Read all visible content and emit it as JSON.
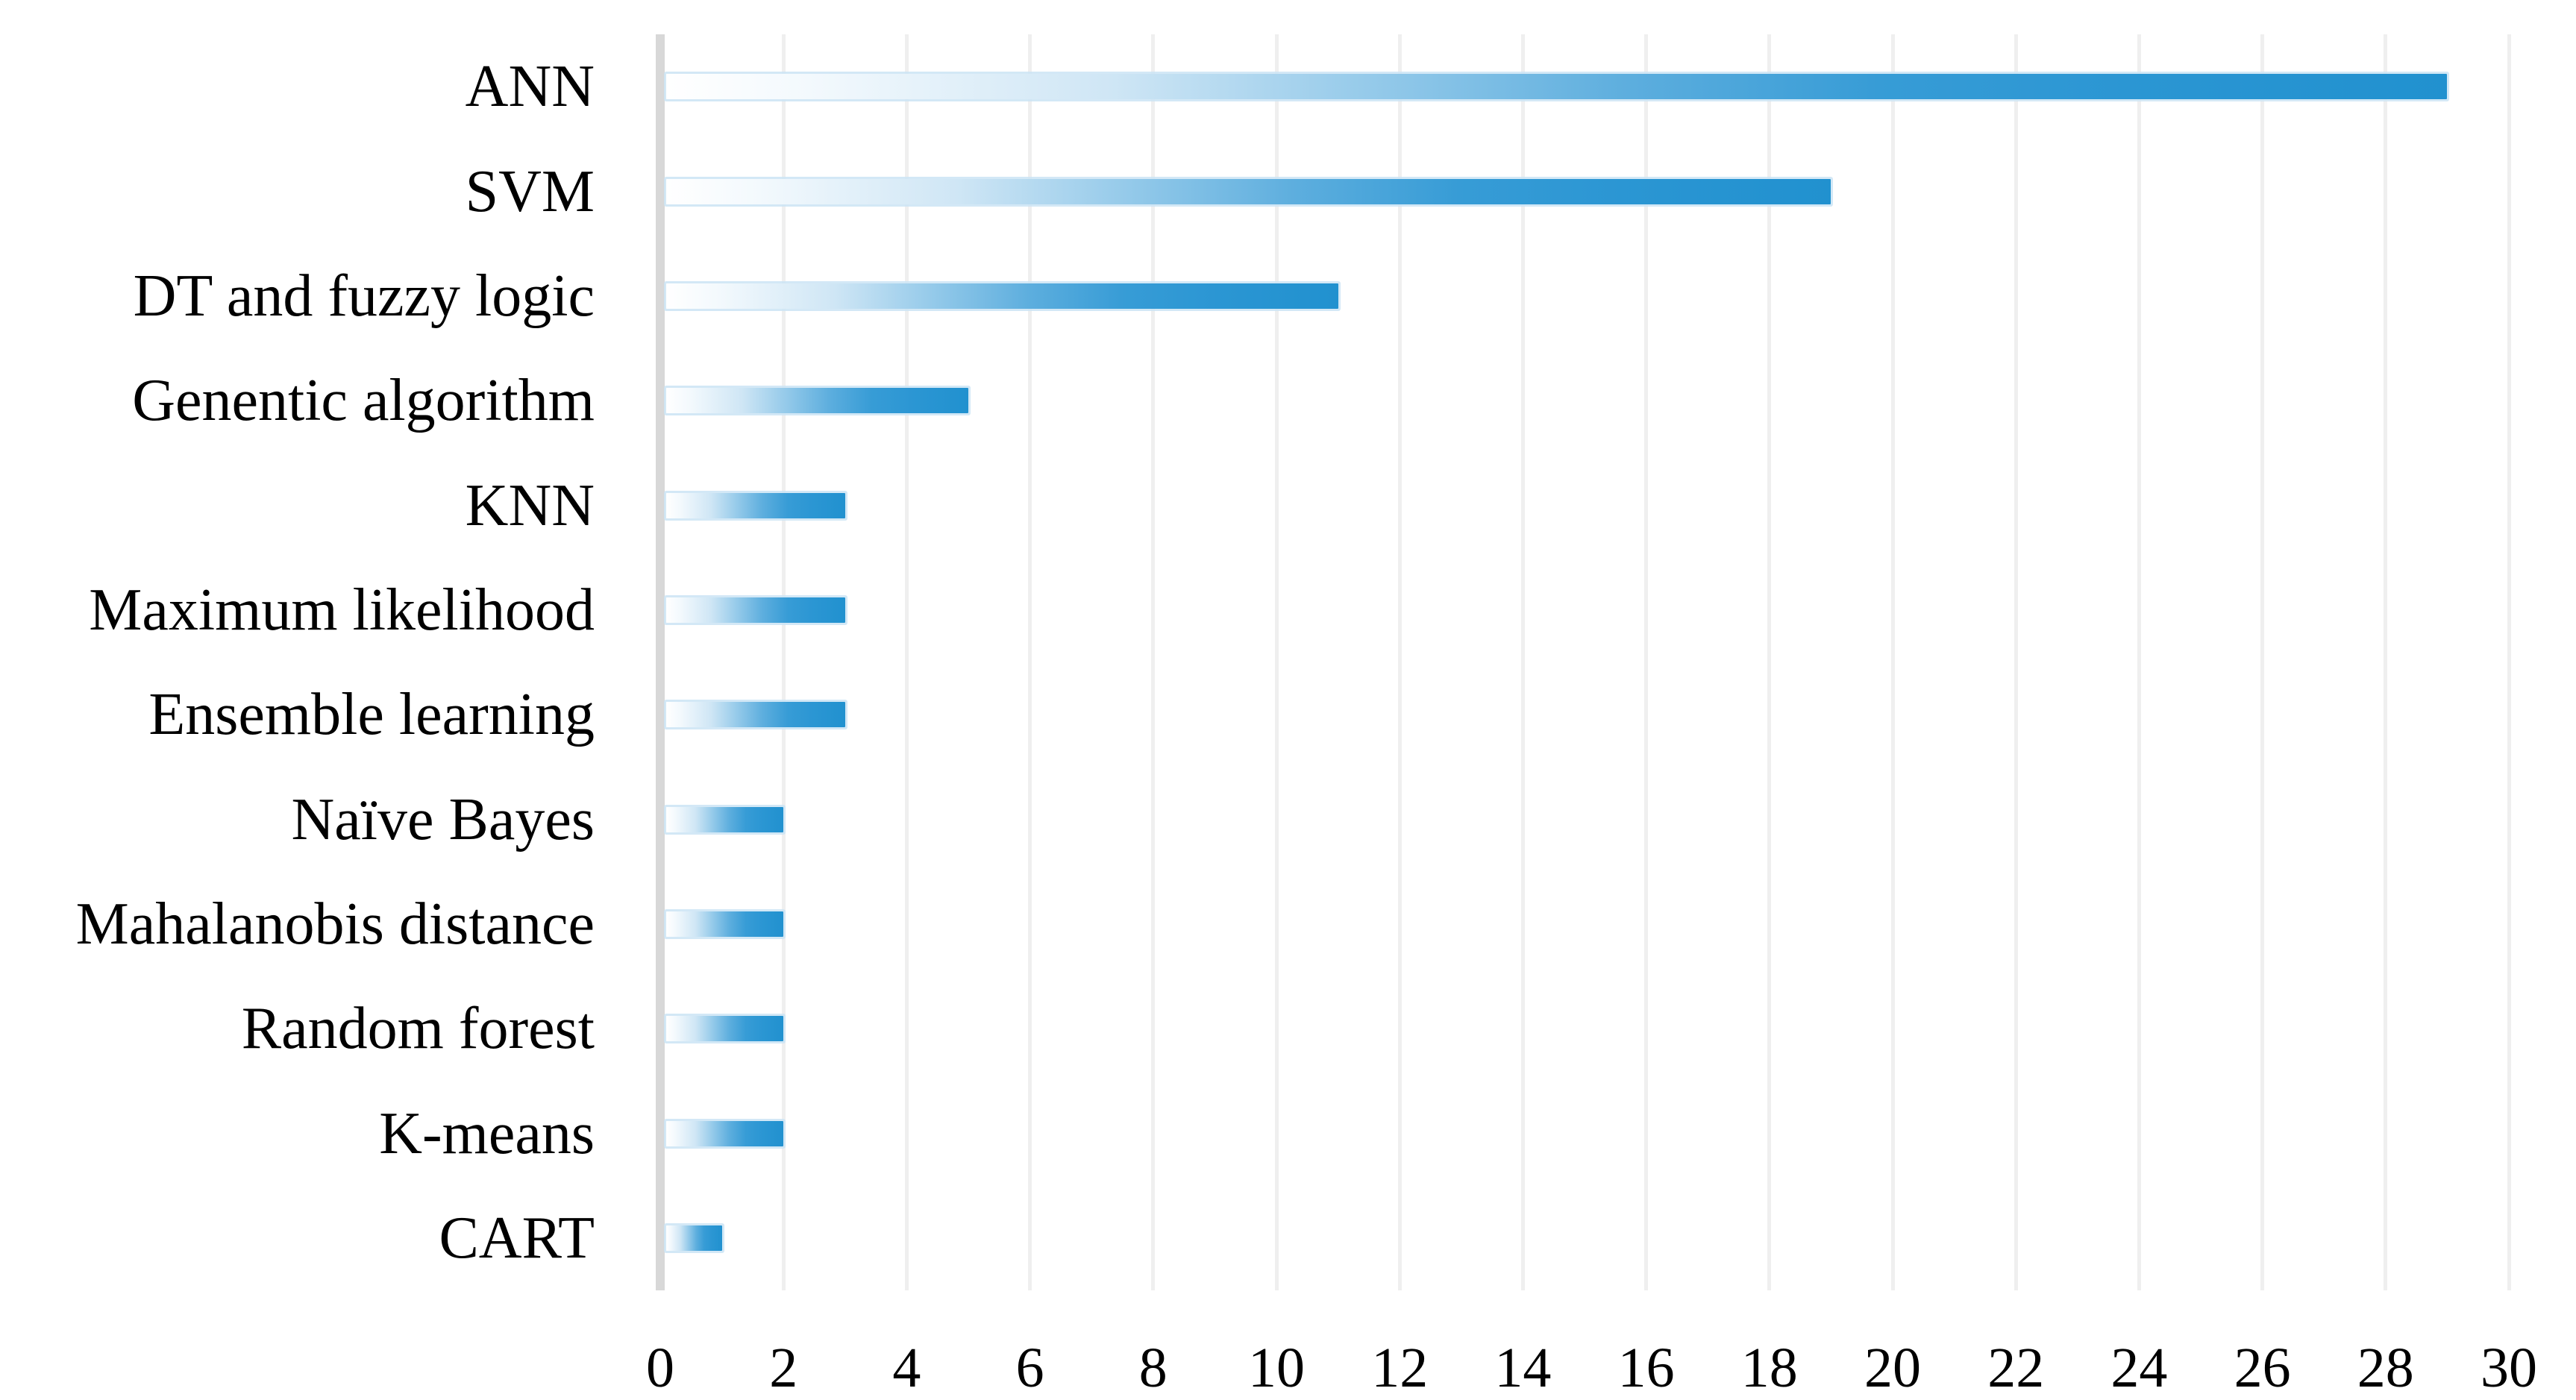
{
  "chart_data": {
    "type": "bar",
    "orientation": "horizontal",
    "title": "",
    "xlabel": "",
    "ylabel": "",
    "categories": [
      "ANN",
      "SVM",
      "DT and fuzzy logic",
      "Genentic algorithm",
      "KNN",
      "Maximum likelihood",
      "Ensemble learning",
      "Naïve Bayes",
      "Mahalanobis distance",
      "Random forest",
      "K-means",
      "CART"
    ],
    "values": [
      29,
      19,
      11,
      5,
      3,
      3,
      3,
      2,
      2,
      2,
      2,
      1
    ],
    "xlim": [
      0,
      30
    ],
    "x_ticks": [
      0,
      2,
      4,
      6,
      8,
      10,
      12,
      14,
      16,
      18,
      20,
      22,
      24,
      26,
      28,
      30
    ],
    "grid": "vertical",
    "legend_position": "none",
    "colors": {
      "bar_fill": "#2B96D3",
      "bar_gradient_start": "#FFFFFF",
      "bar_outline": "#D3E9F7",
      "gridline": "#EFEFEF",
      "axis_line": "#D8D8D8",
      "text": "#000000"
    }
  }
}
